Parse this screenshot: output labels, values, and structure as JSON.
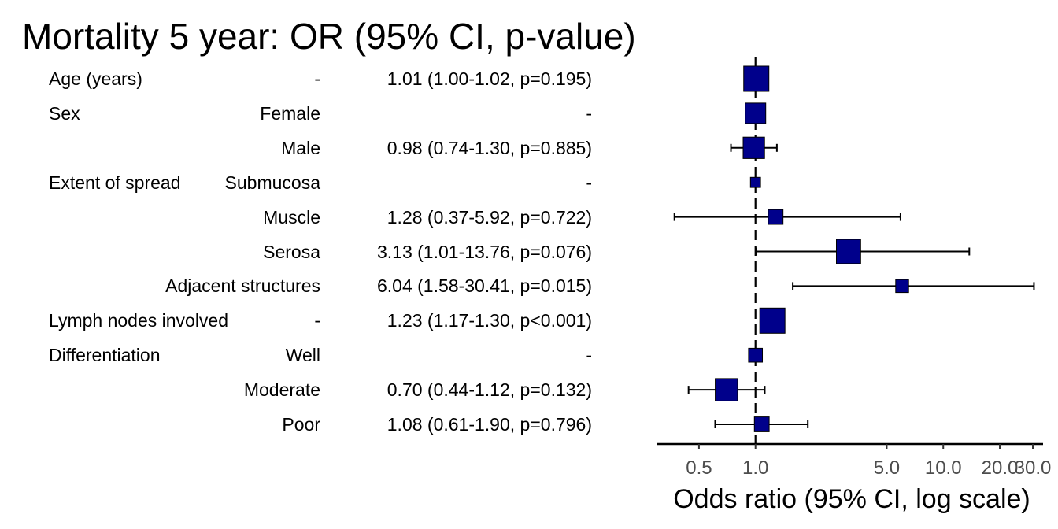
{
  "title": "Mortality 5 year: OR (95% CI, p-value)",
  "rows": [
    {
      "variable": "Age (years)",
      "level": "-",
      "result": "1.01 (1.00-1.02, p=0.195)"
    },
    {
      "variable": "Sex",
      "level": "Female",
      "result": "-"
    },
    {
      "variable": "",
      "level": "Male",
      "result": "0.98 (0.74-1.30, p=0.885)"
    },
    {
      "variable": "Extent of spread",
      "level": "Submucosa",
      "result": "-"
    },
    {
      "variable": "",
      "level": "Muscle",
      "result": "1.28 (0.37-5.92, p=0.722)"
    },
    {
      "variable": "",
      "level": "Serosa",
      "result": "3.13 (1.01-13.76, p=0.076)"
    },
    {
      "variable": "",
      "level": "Adjacent structures",
      "result": "6.04 (1.58-30.41, p=0.015)"
    },
    {
      "variable": "Lymph nodes involved",
      "level": "-",
      "result": "1.23 (1.17-1.30, p<0.001)"
    },
    {
      "variable": "Differentiation",
      "level": "Well",
      "result": "-"
    },
    {
      "variable": "",
      "level": "Moderate",
      "result": "0.70 (0.44-1.12, p=0.132)"
    },
    {
      "variable": "",
      "level": "Poor",
      "result": "1.08 (0.61-1.90, p=0.796)"
    }
  ],
  "chart_data": {
    "type": "scatter",
    "subtype": "forest",
    "title": "Mortality 5 year: OR (95% CI, p-value)",
    "xlabel": "Odds ratio (95% CI, log scale)",
    "ylabel": "",
    "x_scale": "log",
    "xlim": [
      0.3,
      34
    ],
    "xticks": [
      0.5,
      1.0,
      5.0,
      10.0,
      20.0,
      30.0
    ],
    "xtick_labels": [
      "0.5",
      "1.0",
      "5.0",
      "10.0",
      "20.0",
      "30.0"
    ],
    "reference_line": 1.0,
    "grid": false,
    "marker_color": "#00008B",
    "points": [
      {
        "label": "Age (years)",
        "or": 1.01,
        "lower": 1.0,
        "upper": 1.02,
        "weight": 1.0
      },
      {
        "label": "Sex: Female",
        "or": 1.0,
        "lower": null,
        "upper": null,
        "weight": 0.75
      },
      {
        "label": "Sex: Male",
        "or": 0.98,
        "lower": 0.74,
        "upper": 1.3,
        "weight": 0.8
      },
      {
        "label": "Extent of spread: Submucosa",
        "or": 1.0,
        "lower": null,
        "upper": null,
        "weight": 0.2
      },
      {
        "label": "Extent of spread: Muscle",
        "or": 1.28,
        "lower": 0.37,
        "upper": 5.92,
        "weight": 0.45
      },
      {
        "label": "Extent of spread: Serosa",
        "or": 3.13,
        "lower": 1.01,
        "upper": 13.76,
        "weight": 0.95
      },
      {
        "label": "Extent of spread: Adjacent structures",
        "or": 6.04,
        "lower": 1.58,
        "upper": 30.41,
        "weight": 0.35
      },
      {
        "label": "Lymph nodes involved",
        "or": 1.23,
        "lower": 1.17,
        "upper": 1.3,
        "weight": 1.0
      },
      {
        "label": "Differentiation: Well",
        "or": 1.0,
        "lower": null,
        "upper": null,
        "weight": 0.4
      },
      {
        "label": "Differentiation: Moderate",
        "or": 0.7,
        "lower": 0.44,
        "upper": 1.12,
        "weight": 0.85
      },
      {
        "label": "Differentiation: Poor",
        "or": 1.08,
        "lower": 0.61,
        "upper": 1.9,
        "weight": 0.45
      }
    ]
  }
}
